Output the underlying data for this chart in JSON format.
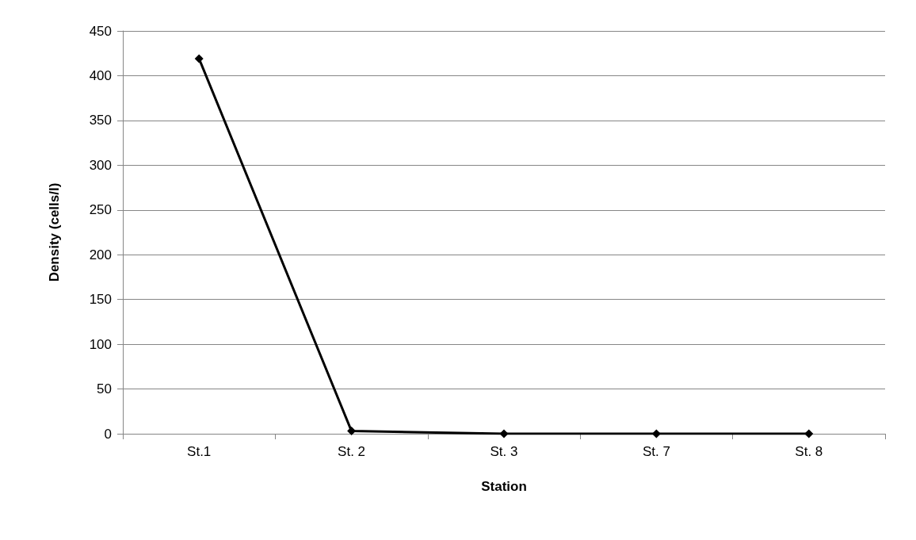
{
  "chart_data": {
    "type": "line",
    "xlabel": "Station",
    "ylabel": "Density (cells/l)",
    "categories": [
      "St.1",
      "St. 2",
      "St. 3",
      "St. 7",
      "St. 8"
    ],
    "series": [
      {
        "color": "#000000",
        "values": [
          419,
          3,
          0,
          0,
          0
        ]
      }
    ],
    "ylim": [
      0,
      450
    ],
    "yticks": [
      0,
      50,
      100,
      150,
      200,
      250,
      300,
      350,
      400,
      450
    ],
    "grid": "y",
    "marker": "diamond",
    "line_style": "solid"
  }
}
